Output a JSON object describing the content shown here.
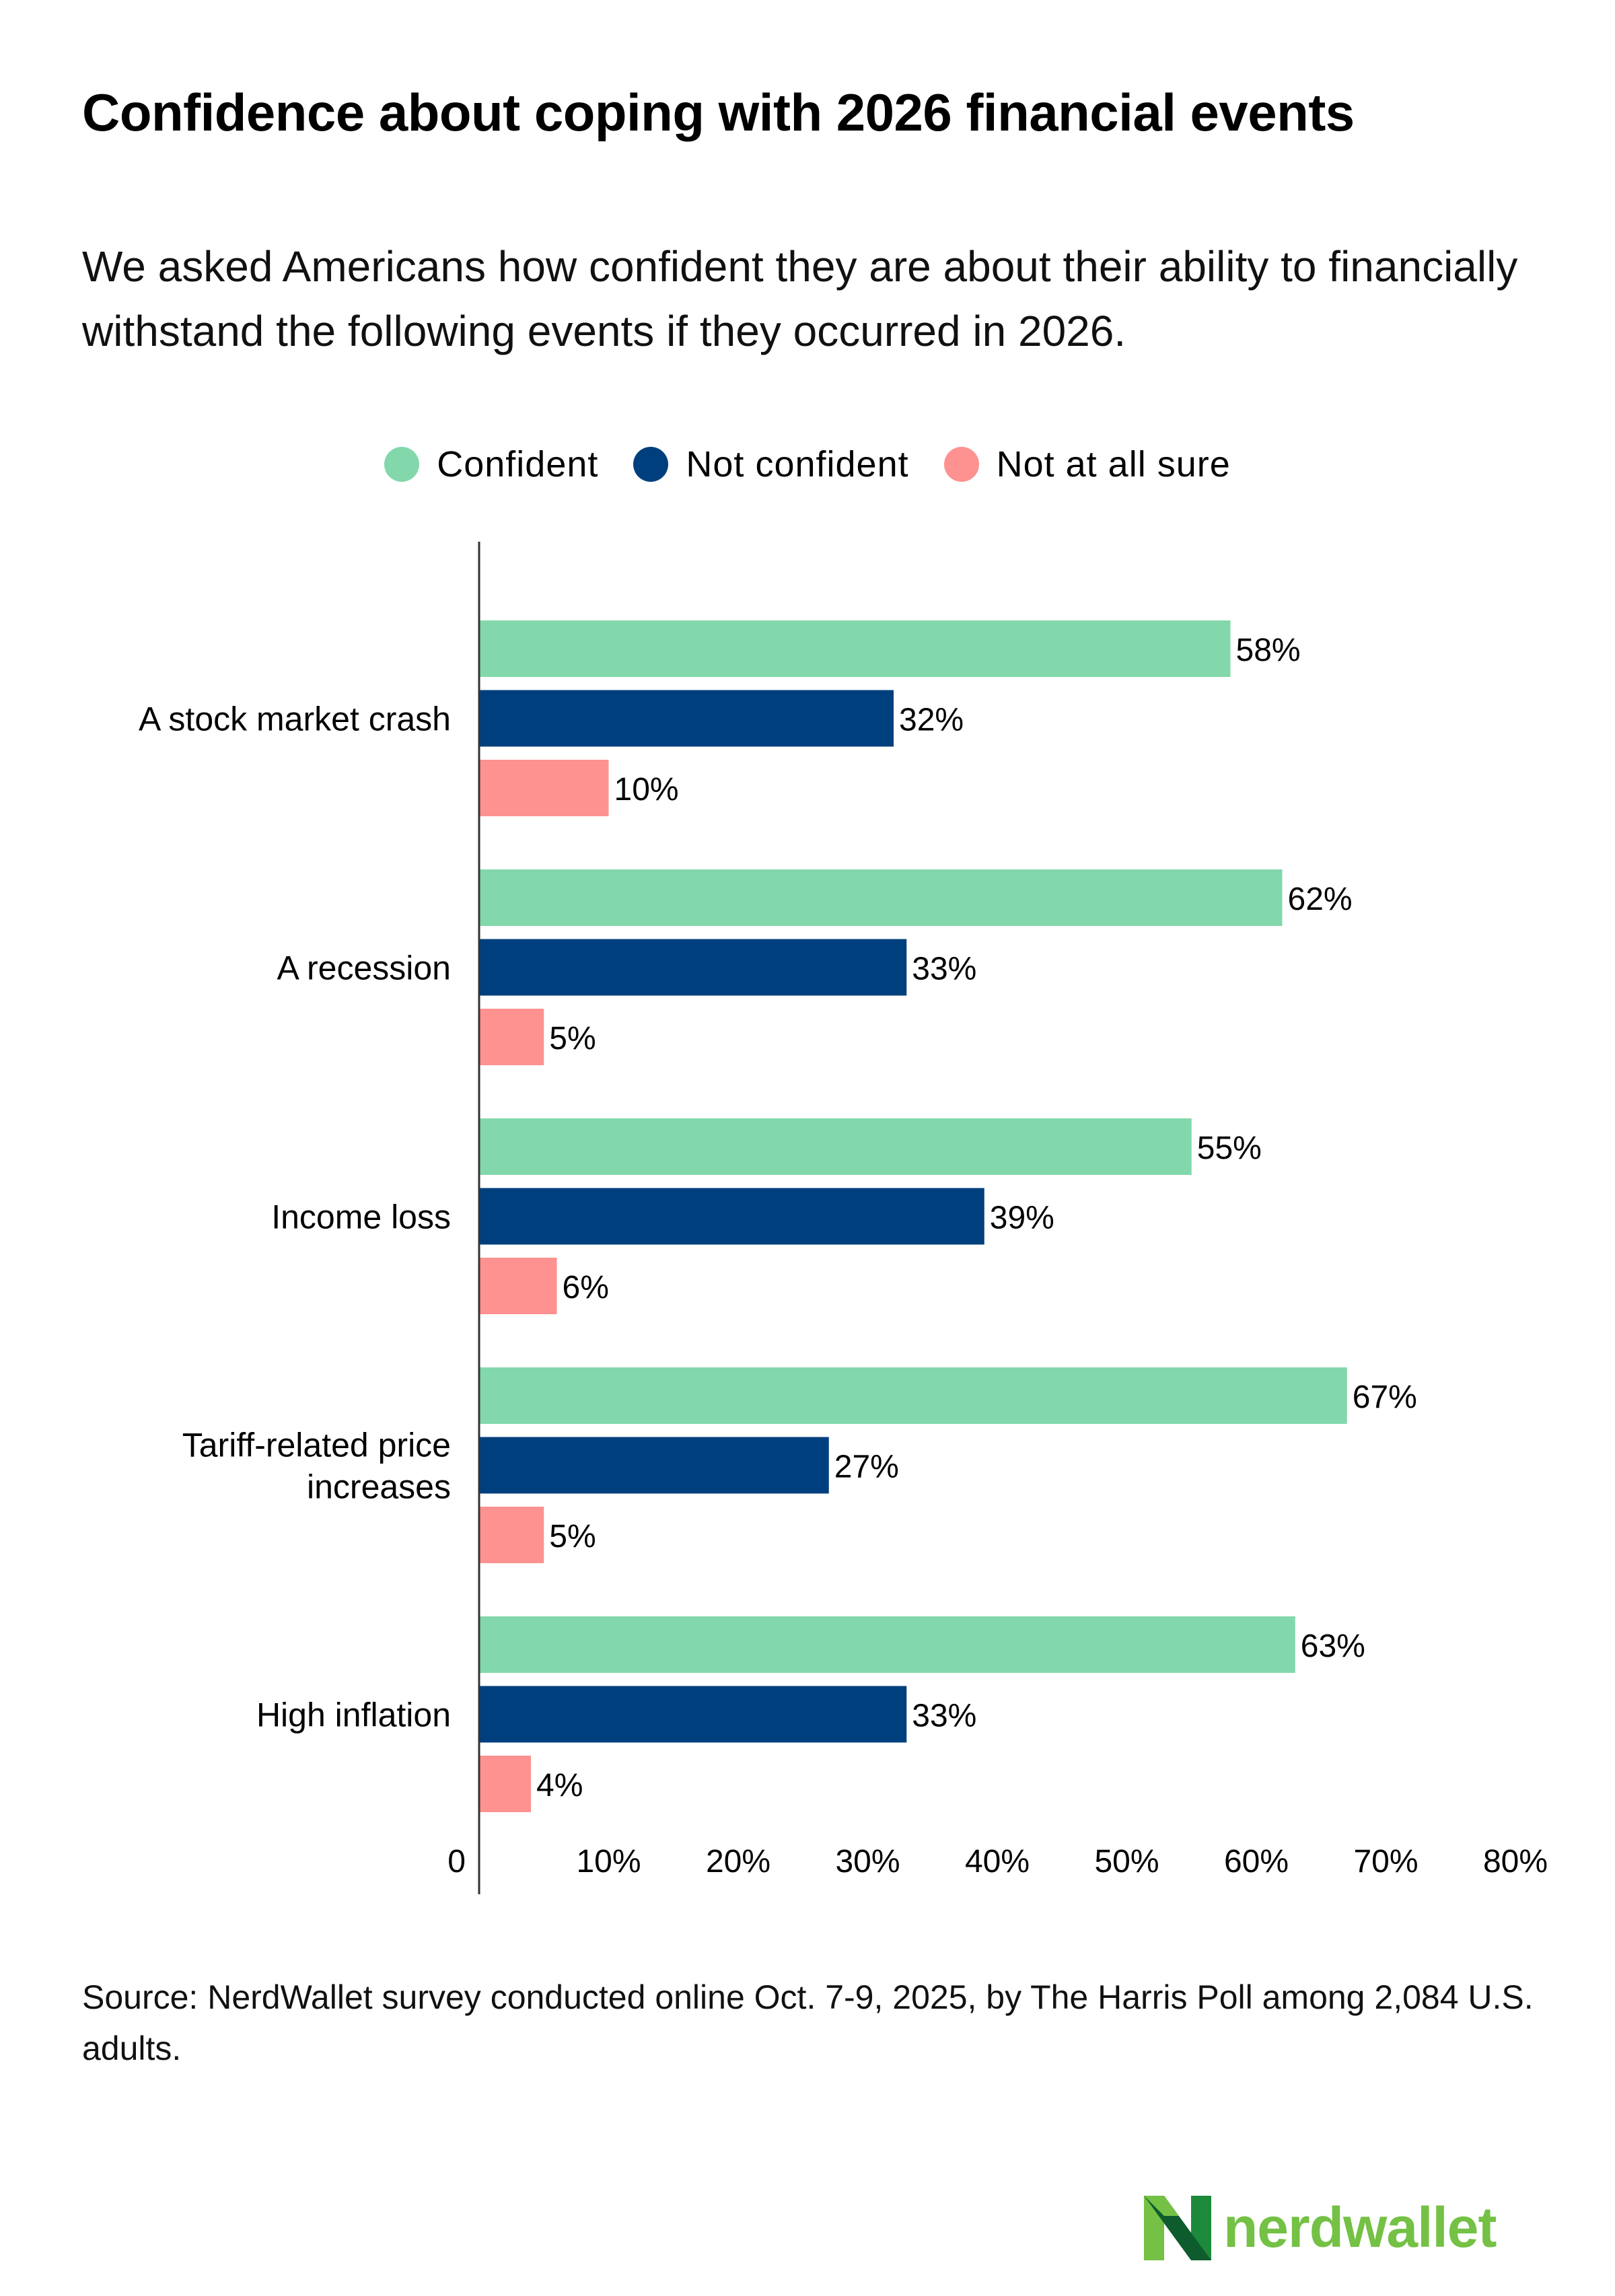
{
  "title": "Confidence about coping with 2026 financial events",
  "subtitle": "We asked Americans how confident they are about their ability to financially withstand the following events if they occurred in 2026.",
  "source": "Source: NerdWallet survey conducted online Oct. 7-9, 2025, by The Harris Poll among 2,084 U.S. adults.",
  "logo": {
    "text": "nerdwallet",
    "icon": "nerdwallet-n-logo-icon",
    "color": "#74c145"
  },
  "chart_data": {
    "type": "bar",
    "orientation": "horizontal",
    "categories": [
      [
        "A stock market crash"
      ],
      [
        "A recession"
      ],
      [
        "Income loss"
      ],
      [
        "Tariff-related price",
        "increases"
      ],
      [
        "High inflation"
      ]
    ],
    "series": [
      {
        "name": "Confident",
        "color": "#82d8ab",
        "values": [
          58,
          62,
          55,
          67,
          63
        ]
      },
      {
        "name": "Not confident",
        "color": "#003f7d",
        "values": [
          32,
          33,
          39,
          27,
          33
        ]
      },
      {
        "name": "Not at all sure",
        "color": "#fd9290",
        "values": [
          10,
          5,
          6,
          5,
          4
        ]
      }
    ],
    "value_labels": [
      [
        "58%",
        "32%",
        "10%"
      ],
      [
        "62%",
        "33%",
        "5%"
      ],
      [
        "55%",
        "39%",
        "6%"
      ],
      [
        "67%",
        "27%",
        "5%"
      ],
      [
        "63%",
        "33%",
        "4%"
      ]
    ],
    "xlim": [
      0,
      80
    ],
    "xticks": [
      0,
      10,
      20,
      30,
      40,
      50,
      60,
      70,
      80
    ],
    "xtick_labels": [
      "0",
      "10%",
      "20%",
      "30%",
      "40%",
      "50%",
      "60%",
      "70%",
      "80%"
    ],
    "legend_position": "top-center",
    "grid": false
  }
}
